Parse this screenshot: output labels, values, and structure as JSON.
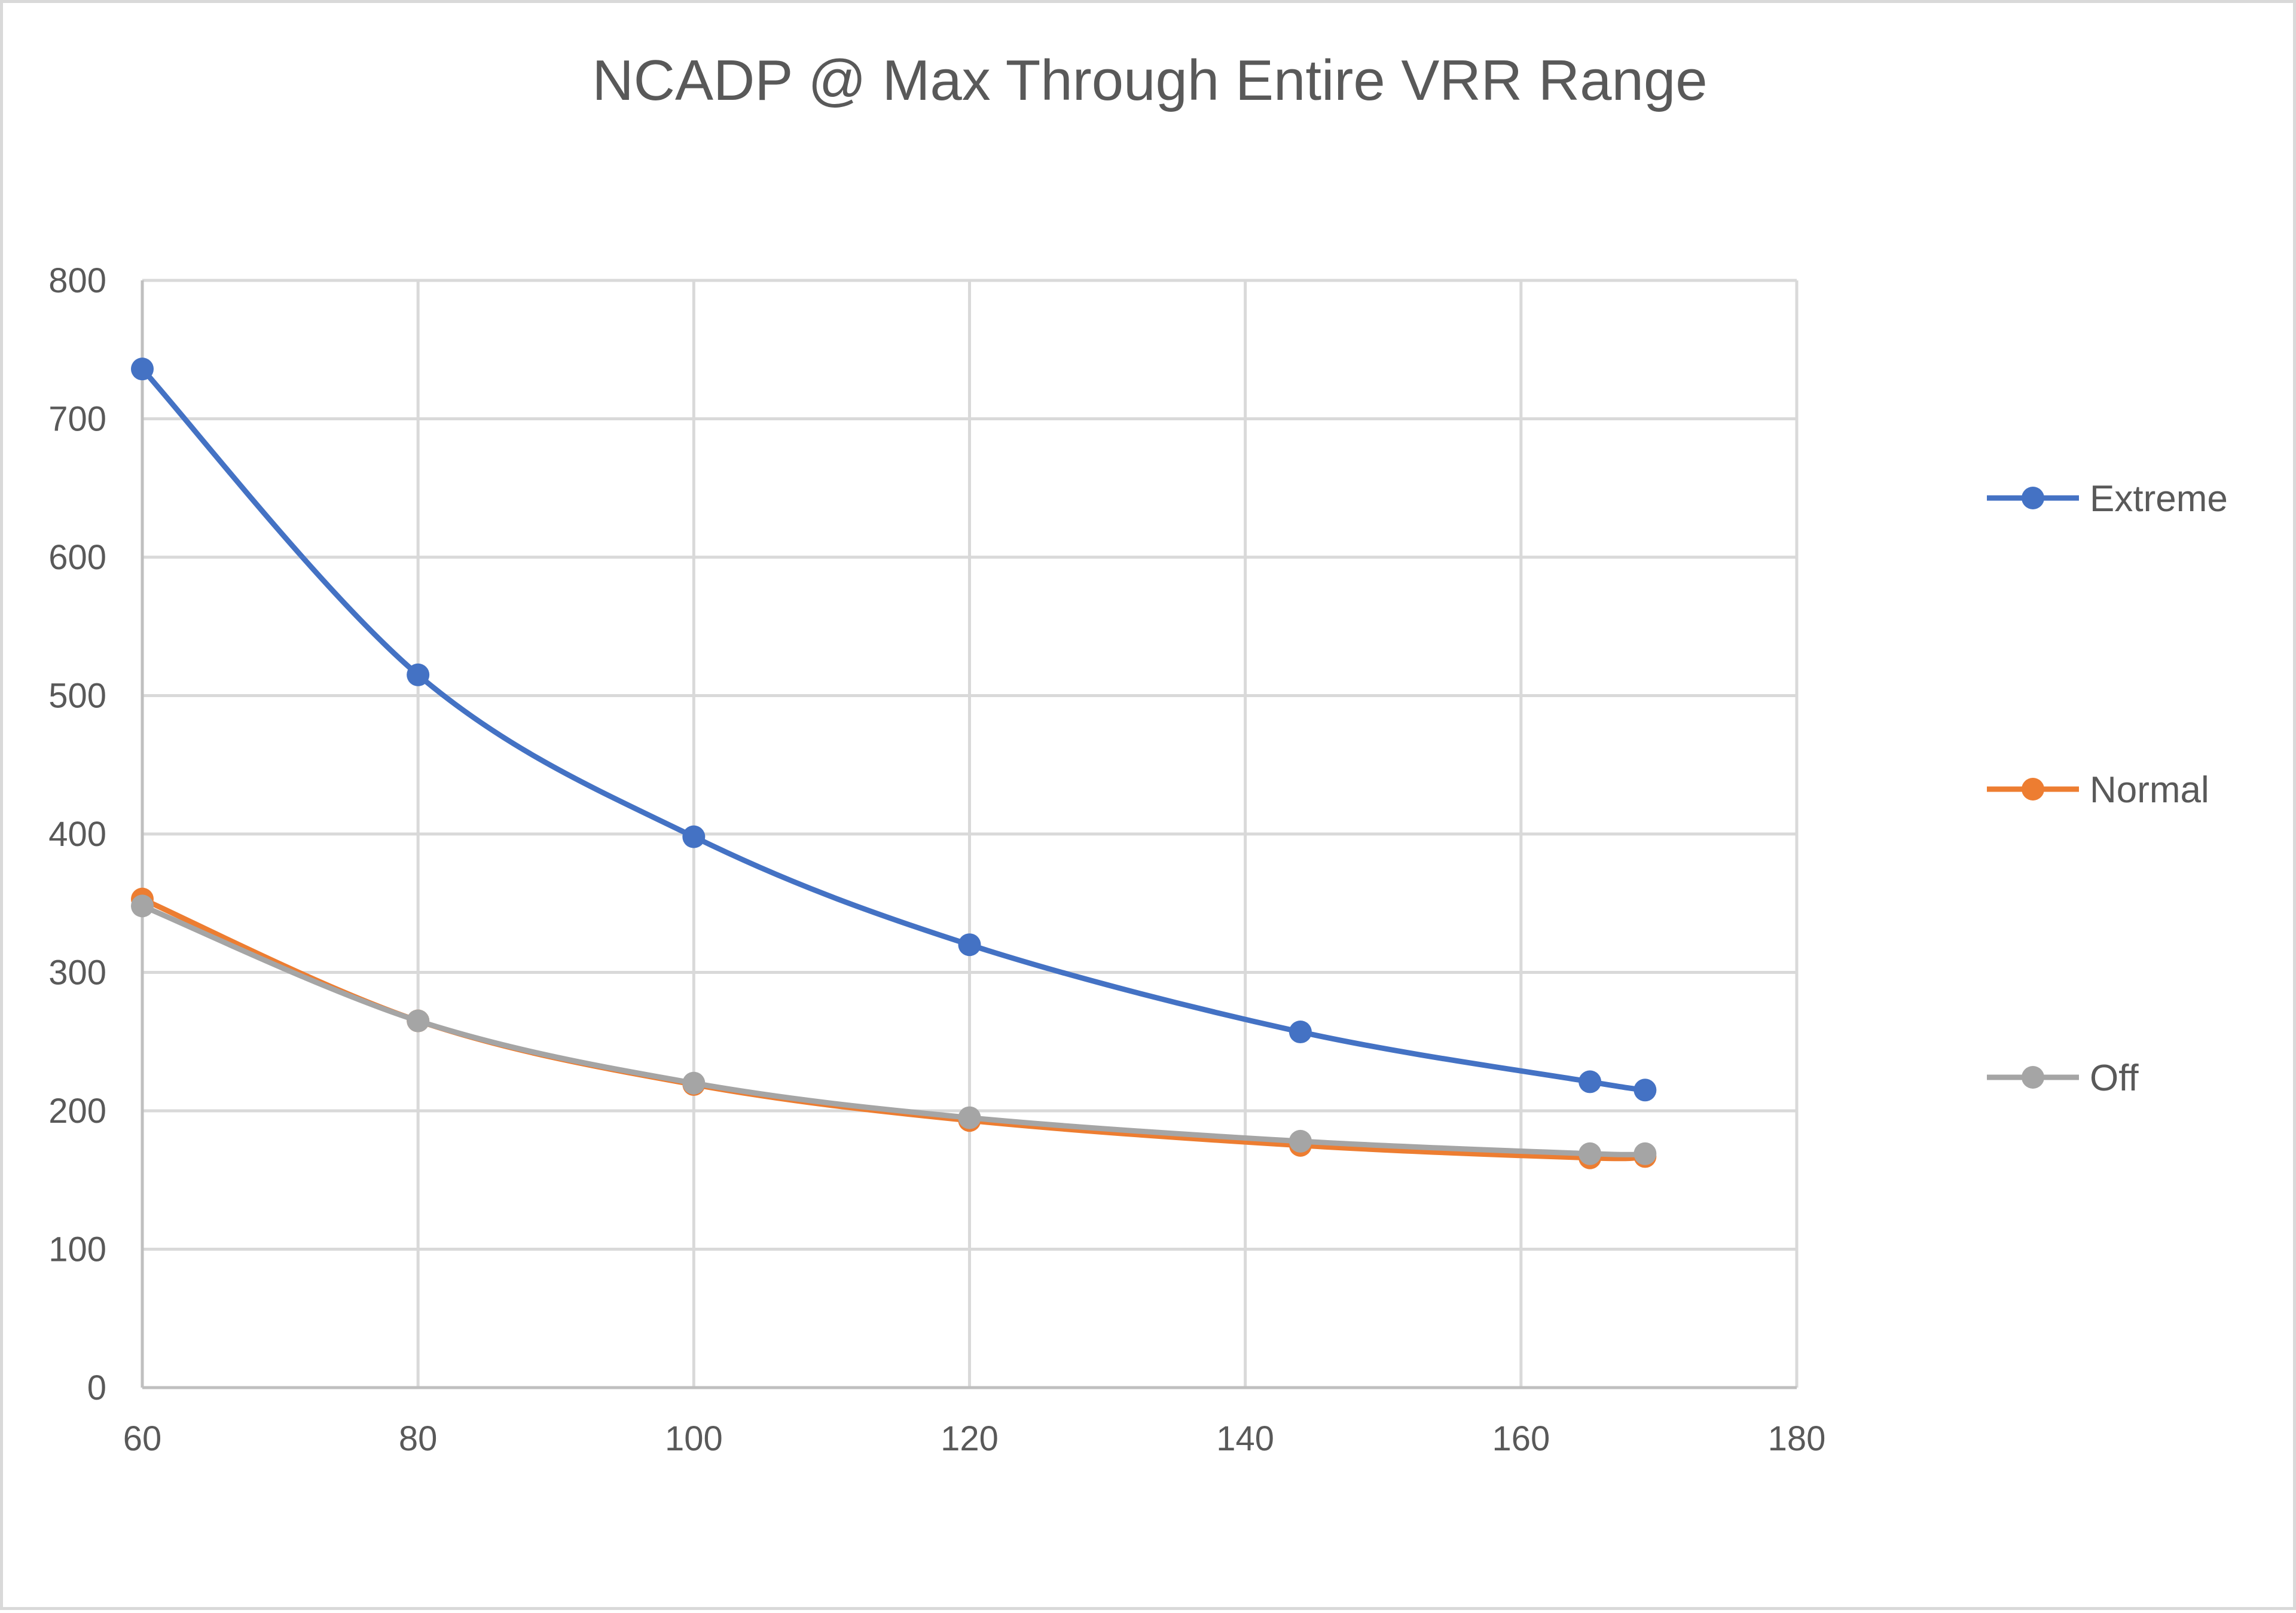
{
  "chart_data": {
    "type": "scatter",
    "title": "NCADP @ Max Through Entire VRR Range",
    "xlabel": "",
    "ylabel": "",
    "xlim": [
      60,
      180
    ],
    "ylim": [
      0,
      800
    ],
    "x_ticks": [
      60,
      80,
      100,
      120,
      140,
      160,
      180
    ],
    "y_ticks": [
      0,
      100,
      200,
      300,
      400,
      500,
      600,
      700,
      800
    ],
    "grid": true,
    "smooth_lines": true,
    "legend_position": "right",
    "series": [
      {
        "name": "Extreme",
        "color": "#4472c4",
        "x": [
          60,
          80,
          100,
          120,
          144,
          165,
          169
        ],
        "y": [
          736,
          515,
          398,
          320,
          257,
          221,
          215
        ]
      },
      {
        "name": "Normal",
        "color": "#ed7d31",
        "x": [
          60,
          80,
          100,
          120,
          144,
          165,
          169
        ],
        "y": [
          353,
          265,
          219,
          193,
          175,
          166,
          167
        ]
      },
      {
        "name": "Off",
        "color": "#a5a5a5",
        "x": [
          60,
          80,
          100,
          120,
          144,
          165,
          169
        ],
        "y": [
          348,
          265,
          220,
          195,
          178,
          169,
          169
        ]
      }
    ]
  }
}
